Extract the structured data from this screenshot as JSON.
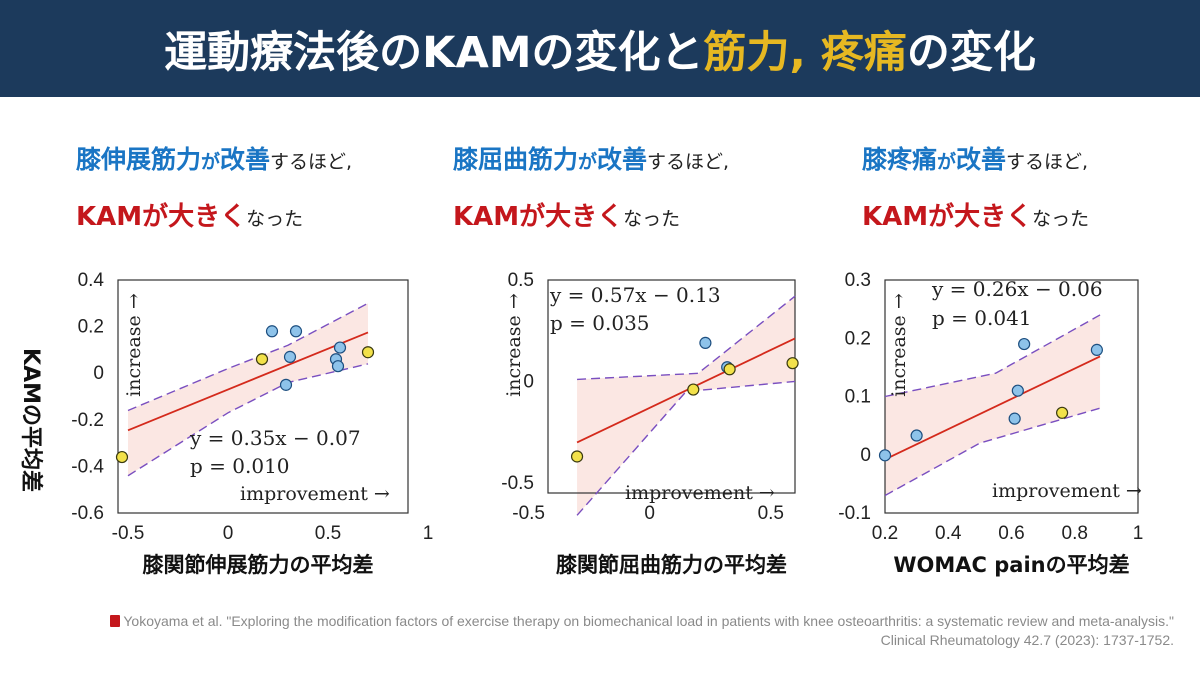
{
  "title": {
    "part1": "運動療法後の",
    "part2": "KAM",
    "part3": "の変化と",
    "part4": "筋力, 疼痛",
    "part5": "の変化"
  },
  "panels": [
    {
      "line1_a": "膝伸展筋力",
      "line1_b": "が",
      "line1_c": "改善",
      "line1_d": "するほど,",
      "line2_a": "KAMが大きく",
      "line2_b": "なった"
    },
    {
      "line1_a": "膝屈曲筋力",
      "line1_b": "が",
      "line1_c": "改善",
      "line1_d": "するほど,",
      "line2_a": "KAMが大きく",
      "line2_b": "なった"
    },
    {
      "line1_a": "膝疼痛",
      "line1_b": "が",
      "line1_c": "改善",
      "line1_d": "するほど,",
      "line2_a": "KAMが大きく",
      "line2_b": "なった"
    }
  ],
  "y_axis_label": "KAMの平均差",
  "increase_label": "increase →",
  "improvement_label": "improvement →",
  "colors": {
    "title_bg": "#1c3a5c",
    "highlight": "#e6b822",
    "blue_text": "#1a75c4",
    "red_text": "#c4171c",
    "regression": "#d42a1c",
    "ci": "#7a4fc0",
    "band": "#fbe7e3",
    "point_blue": "#8ec3ea",
    "point_yellow": "#f2e14a"
  },
  "chart_data": [
    {
      "type": "scatter",
      "xlabel": "膝関節伸展筋力の平均差",
      "ylabel": "KAMの平均差",
      "xlim": [
        -0.55,
        0.9
      ],
      "ylim": [
        -0.6,
        0.4
      ],
      "xticks": [
        "-0.5",
        "0",
        "0.5",
        "1"
      ],
      "xtick_values": [
        -0.5,
        0,
        0.5,
        1
      ],
      "yticks": [
        "0.4",
        "0.2",
        "0",
        "-0.2",
        "-0.4",
        "-0.6"
      ],
      "ytick_values": [
        0.4,
        0.2,
        0,
        -0.2,
        -0.4,
        -0.6
      ],
      "equation": "y = 0.35x − 0.07",
      "p_value": "p = 0.010",
      "slope": 0.35,
      "intercept": -0.07,
      "line_x": [
        -0.5,
        0.7
      ],
      "ci_upper": [
        [
          -0.5,
          -0.16
        ],
        [
          0,
          0.02
        ],
        [
          0.3,
          0.12
        ],
        [
          0.7,
          0.3
        ]
      ],
      "ci_lower": [
        [
          -0.5,
          -0.44
        ],
        [
          0,
          -0.17
        ],
        [
          0.3,
          -0.04
        ],
        [
          0.7,
          0.04
        ]
      ],
      "points_blue": [
        [
          0.22,
          0.18
        ],
        [
          0.34,
          0.18
        ],
        [
          0.29,
          -0.05
        ],
        [
          0.31,
          0.07
        ],
        [
          0.54,
          0.06
        ],
        [
          0.55,
          0.03
        ],
        [
          0.56,
          0.11
        ]
      ],
      "points_yellow": [
        [
          -0.53,
          -0.36
        ],
        [
          0.17,
          0.06
        ],
        [
          0.7,
          0.09
        ]
      ]
    },
    {
      "type": "scatter",
      "xlabel": "膝関節屈曲筋力の平均差",
      "ylabel": "KAMの平均差",
      "xlim": [
        -0.42,
        0.6
      ],
      "ylim": [
        -0.55,
        0.5
      ],
      "xticks": [
        "-0.5",
        "0",
        "0.5"
      ],
      "xtick_values": [
        -0.5,
        0,
        0.5
      ],
      "yticks": [
        "0.5",
        "0",
        "-0.5"
      ],
      "ytick_values": [
        0.5,
        0,
        -0.5
      ],
      "equation": "y = 0.57x − 0.13",
      "p_value": "p = 0.035",
      "slope": 0.57,
      "intercept": -0.13,
      "line_x": [
        -0.3,
        0.6
      ],
      "ci_upper": [
        [
          -0.3,
          0.01
        ],
        [
          0.2,
          0.04
        ],
        [
          0.6,
          0.42
        ]
      ],
      "ci_lower": [
        [
          -0.3,
          -0.66
        ],
        [
          0.15,
          -0.05
        ],
        [
          0.6,
          0.0
        ]
      ],
      "points_blue": [
        [
          0.23,
          0.19
        ],
        [
          0.32,
          0.07
        ]
      ],
      "points_yellow": [
        [
          -0.3,
          -0.37
        ],
        [
          0.18,
          -0.04
        ],
        [
          0.33,
          0.06
        ],
        [
          0.59,
          0.09
        ]
      ]
    },
    {
      "type": "scatter",
      "xlabel": "WOMAC painの平均差",
      "ylabel": "KAMの平均差",
      "xlim": [
        0.2,
        1.0
      ],
      "ylim": [
        -0.1,
        0.3
      ],
      "xticks": [
        "0.2",
        "0.4",
        "0.6",
        "0.8",
        "1"
      ],
      "xtick_values": [
        0.2,
        0.4,
        0.6,
        0.8,
        1.0
      ],
      "yticks": [
        "0.3",
        "0.2",
        "0.1",
        "0",
        "-0.1"
      ],
      "ytick_values": [
        0.3,
        0.2,
        0.1,
        0,
        -0.1
      ],
      "equation": "y = 0.26x − 0.06",
      "p_value": "p = 0.041",
      "slope": 0.26,
      "intercept": -0.06,
      "line_x": [
        0.2,
        0.88
      ],
      "ci_upper": [
        [
          0.2,
          0.1
        ],
        [
          0.55,
          0.14
        ],
        [
          0.88,
          0.24
        ]
      ],
      "ci_lower": [
        [
          0.2,
          -0.07
        ],
        [
          0.5,
          0.02
        ],
        [
          0.88,
          0.08
        ]
      ],
      "points_blue": [
        [
          0.2,
          -0.001
        ],
        [
          0.3,
          0.033
        ],
        [
          0.62,
          0.11
        ],
        [
          0.61,
          0.062
        ],
        [
          0.64,
          0.19
        ],
        [
          0.87,
          0.18
        ]
      ],
      "points_yellow": [
        [
          0.76,
          0.072
        ]
      ]
    }
  ],
  "citation": {
    "line1": "Yokoyama et al. \"Exploring the modification factors of exercise therapy on biomechanical load in patients with knee osteoarthritis: a systematic review and meta-analysis.\"",
    "line2": "Clinical Rheumatology 42.7 (2023): 1737-1752."
  }
}
